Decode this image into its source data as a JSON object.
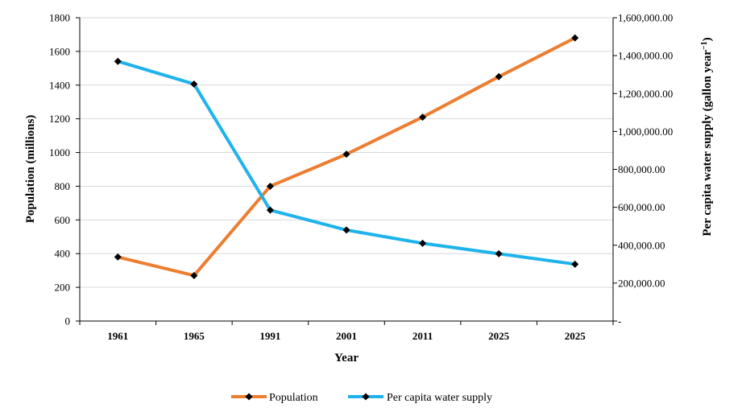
{
  "chart_data": {
    "type": "line",
    "categories": [
      "1961",
      "1965",
      "1991",
      "2001",
      "2011",
      "2025",
      "2025"
    ],
    "xlabel": "Year",
    "ylabel_left": "Population (millions)",
    "ylabel_right_main": "Per capita water supply (gallon year",
    "ylabel_right_sup": "−1",
    "ylabel_right_end": ")",
    "ylim_left": [
      0,
      1800
    ],
    "ylim_right": [
      0,
      1600000
    ],
    "yticks_left": [
      "0",
      "200",
      "400",
      "600",
      "800",
      "1000",
      "1200",
      "1400",
      "1600",
      "1800"
    ],
    "yticks_right": [
      "-",
      "200,000.00",
      "400,000.00",
      "600,000.00",
      "800,000.00",
      "1,000,000.00",
      "1,200,000.00",
      "1,400,000.00",
      "1,600,000.00"
    ],
    "grid": true,
    "legend_position": "bottom",
    "series": [
      {
        "name": "Population",
        "axis": "left",
        "color": "#ED7D31",
        "values": [
          380,
          270,
          800,
          990,
          1210,
          1450,
          1680
        ]
      },
      {
        "name": "Per capita water supply",
        "axis": "right",
        "color": "#1FB3EB",
        "values": [
          1370000,
          1250000,
          585000,
          480000,
          410000,
          355000,
          300000
        ]
      }
    ],
    "marker_color": "#000000",
    "marker_icon": "diamond-marker"
  }
}
